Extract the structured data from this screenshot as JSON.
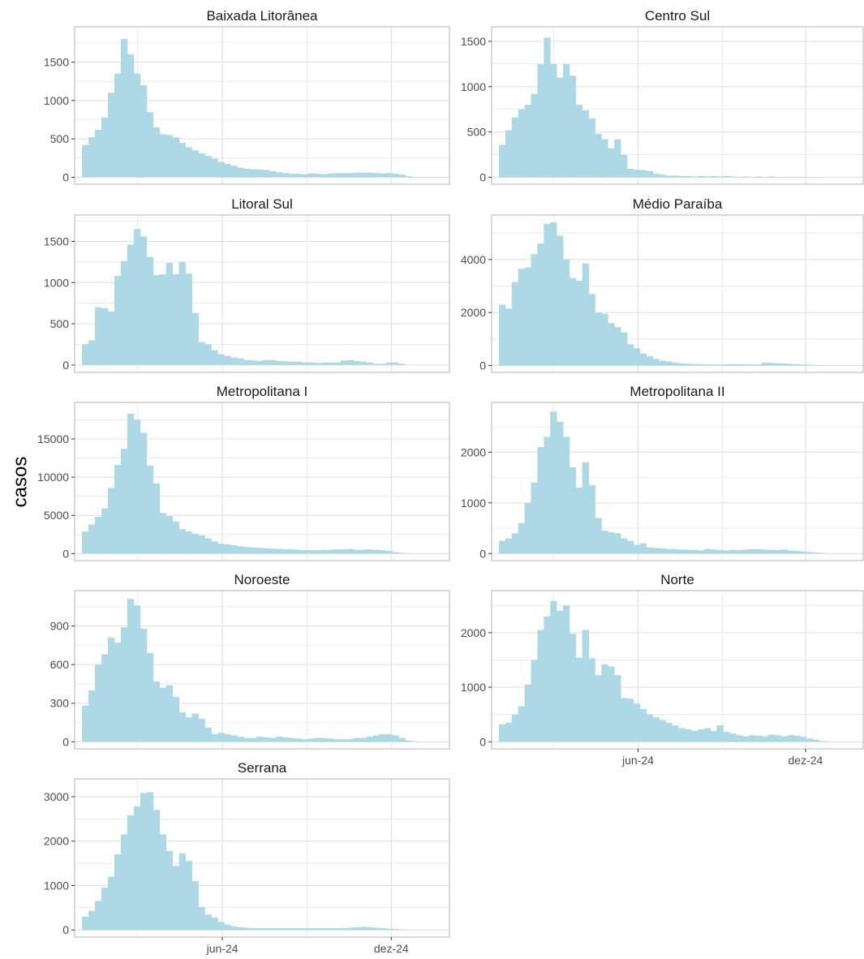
{
  "ylabel": "casos",
  "colors": {
    "bar": "#add8e6",
    "grid": "#dedede",
    "axis": "#b3b3b3"
  },
  "x_ticks": [
    "jun-24",
    "dez-24"
  ],
  "chart_data": {
    "type": "bar",
    "ylabel": "casos",
    "x_range": [
      "2023-12-24",
      "2025-02-02"
    ],
    "bar_width_days": 7,
    "week_start": "2024-01-01",
    "x_ticks": [
      "jun-24",
      "dez-24"
    ],
    "facets": [
      {
        "name": "Baixada Litorânea",
        "ylim": [
          -90,
          1960
        ],
        "yticks": [
          0,
          500,
          1000,
          1500
        ],
        "values": [
          420,
          520,
          620,
          780,
          1100,
          1350,
          1800,
          1600,
          1350,
          1200,
          850,
          650,
          560,
          550,
          520,
          450,
          390,
          350,
          310,
          280,
          245,
          200,
          175,
          150,
          125,
          110,
          105,
          100,
          95,
          80,
          65,
          55,
          45,
          45,
          40,
          50,
          45,
          40,
          50,
          55,
          55,
          55,
          60,
          60,
          60,
          55,
          50,
          55,
          45,
          35,
          15,
          5
        ]
      },
      {
        "name": "Centro Sul",
        "ylim": [
          -75,
          1660
        ],
        "yticks": [
          0,
          500,
          1000,
          1500
        ],
        "values": [
          360,
          520,
          660,
          750,
          800,
          920,
          1250,
          1540,
          1250,
          1100,
          1250,
          1120,
          800,
          740,
          650,
          480,
          420,
          320,
          420,
          250,
          95,
          85,
          80,
          70,
          40,
          30,
          20,
          20,
          15,
          15,
          10,
          15,
          10,
          15,
          10,
          15,
          10,
          5,
          10,
          5,
          10,
          5,
          10,
          5,
          5,
          5,
          5,
          5,
          3,
          2,
          2
        ]
      },
      {
        "name": "Litoral Sul",
        "ylim": [
          -90,
          1820
        ],
        "yticks": [
          0,
          500,
          1000,
          1500
        ],
        "values": [
          250,
          300,
          700,
          690,
          650,
          1080,
          1260,
          1460,
          1650,
          1560,
          1310,
          1090,
          1100,
          1240,
          1100,
          1250,
          1110,
          630,
          280,
          250,
          180,
          130,
          110,
          90,
          80,
          60,
          55,
          50,
          60,
          60,
          50,
          45,
          40,
          40,
          30,
          30,
          25,
          30,
          30,
          30,
          55,
          60,
          50,
          40,
          30,
          15,
          15,
          30,
          30,
          15
        ]
      },
      {
        "name": "Médio Paraíba",
        "ylim": [
          -260,
          5680
        ],
        "yticks": [
          0,
          2000,
          4000
        ],
        "values": [
          2300,
          2150,
          3150,
          3650,
          3700,
          4200,
          4600,
          5350,
          5400,
          4900,
          4000,
          3300,
          3200,
          3850,
          2700,
          2000,
          1950,
          1600,
          1450,
          1250,
          800,
          650,
          450,
          350,
          250,
          180,
          150,
          110,
          85,
          70,
          60,
          50,
          45,
          40,
          35,
          45,
          55,
          50,
          45,
          35,
          40,
          110,
          95,
          85,
          75,
          60,
          55,
          40,
          30,
          20,
          10
        ]
      },
      {
        "name": "Metropolitana I",
        "ylim": [
          -920,
          19780
        ],
        "yticks": [
          0,
          5000,
          10000,
          15000
        ],
        "values": [
          2900,
          3800,
          4800,
          5900,
          8600,
          11600,
          13700,
          18300,
          17500,
          15800,
          11500,
          9200,
          5300,
          4900,
          4200,
          3200,
          2900,
          2600,
          2400,
          2000,
          1600,
          1300,
          1200,
          1100,
          950,
          850,
          800,
          750,
          700,
          650,
          600,
          550,
          550,
          500,
          450,
          450,
          450,
          500,
          500,
          550,
          550,
          600,
          500,
          500,
          550,
          500,
          450,
          350,
          200,
          100,
          50
        ]
      },
      {
        "name": "Metropolitana II",
        "ylim": [
          -140,
          2980
        ],
        "yticks": [
          0,
          1000,
          2000
        ],
        "values": [
          250,
          300,
          400,
          600,
          1000,
          1400,
          2100,
          2300,
          2800,
          2600,
          2300,
          1700,
          1300,
          1800,
          1350,
          700,
          450,
          420,
          400,
          300,
          250,
          170,
          200,
          120,
          110,
          100,
          90,
          85,
          80,
          75,
          70,
          60,
          90,
          80,
          70,
          60,
          75,
          70,
          80,
          85,
          85,
          80,
          75,
          70,
          80,
          60,
          50,
          40,
          30,
          20,
          10
        ]
      },
      {
        "name": "Noroeste",
        "ylim": [
          -55,
          1175
        ],
        "yticks": [
          0,
          300,
          600,
          900
        ],
        "values": [
          280,
          400,
          600,
          680,
          810,
          770,
          890,
          1110,
          1060,
          880,
          690,
          470,
          420,
          440,
          350,
          230,
          190,
          220,
          180,
          110,
          60,
          70,
          60,
          50,
          40,
          30,
          30,
          40,
          35,
          30,
          40,
          35,
          30,
          25,
          20,
          25,
          30,
          30,
          25,
          20,
          20,
          20,
          30,
          30,
          40,
          50,
          60,
          60,
          50,
          30,
          10,
          5
        ]
      },
      {
        "name": "Norte",
        "ylim": [
          -130,
          2770
        ],
        "yticks": [
          0,
          1000,
          2000
        ],
        "values": [
          320,
          350,
          500,
          650,
          1050,
          1500,
          2050,
          2300,
          2580,
          2400,
          2500,
          1980,
          1540,
          2050,
          1530,
          1220,
          1420,
          1380,
          1220,
          800,
          790,
          700,
          600,
          500,
          450,
          400,
          350,
          300,
          250,
          230,
          200,
          230,
          250,
          200,
          300,
          180,
          150,
          120,
          100,
          120,
          110,
          100,
          130,
          120,
          100,
          120,
          110,
          90,
          60,
          40,
          15,
          5
        ]
      },
      {
        "name": "Serrana",
        "ylim": [
          -160,
          3400
        ],
        "yticks": [
          0,
          1000,
          2000,
          3000
        ],
        "values": [
          300,
          430,
          650,
          950,
          1200,
          1700,
          2150,
          2580,
          2780,
          3080,
          3100,
          2700,
          2150,
          1780,
          1440,
          1720,
          1550,
          1100,
          520,
          350,
          280,
          180,
          120,
          80,
          60,
          50,
          40,
          40,
          40,
          40,
          40,
          40,
          40,
          40,
          40,
          40,
          40,
          40,
          40,
          40,
          45,
          50,
          60,
          70,
          60,
          50,
          40,
          30,
          20,
          10,
          5
        ]
      }
    ]
  }
}
